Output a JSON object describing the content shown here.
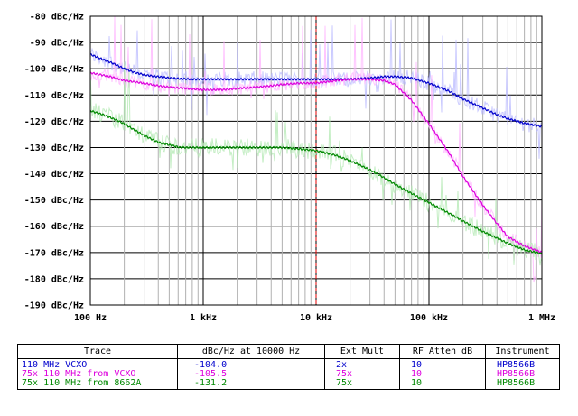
{
  "chart_data": {
    "type": "line",
    "x_scale": "log",
    "y_range": [
      -190,
      -80
    ],
    "x_range_hz": [
      100,
      1000000
    ],
    "grid": true,
    "marker": {
      "x_hz": 10000,
      "color": "#e00000",
      "style": "dashed"
    },
    "y_tick_labels": [
      "-80 dBc/Hz",
      "-90 dBc/Hz",
      "-100 dBc/Hz",
      "-110 dBc/Hz",
      "-120 dBc/Hz",
      "-130 dBc/Hz",
      "-140 dBc/Hz",
      "-150 dBc/Hz",
      "-160 dBc/Hz",
      "-170 dBc/Hz",
      "-180 dBc/Hz",
      "-190 dBc/Hz"
    ],
    "y_tick_values": [
      -80,
      -90,
      -100,
      -110,
      -120,
      -130,
      -140,
      -150,
      -160,
      -170,
      -180,
      -190
    ],
    "x_tick_labels": [
      "100 Hz",
      "1 kHz",
      "10 kHz",
      "100 kHz",
      "1 MHz"
    ],
    "x_tick_values": [
      100,
      1000,
      10000,
      100000,
      1000000
    ],
    "series": [
      {
        "name": "110 MHz VCXO",
        "color": "#0000cc",
        "x": [
          100,
          130,
          160,
          200,
          250,
          320,
          400,
          500,
          630,
          800,
          1000,
          1500,
          2000,
          3000,
          4000,
          5000,
          7000,
          10000,
          14000,
          20000,
          30000,
          40000,
          50000,
          70000,
          100000,
          150000,
          200000,
          300000,
          400000,
          500000,
          700000,
          1000000
        ],
        "y": [
          -94.5,
          -96.5,
          -98,
          -100,
          -101.5,
          -102.5,
          -103,
          -103.5,
          -103.8,
          -104,
          -104,
          -104,
          -104,
          -104,
          -104,
          -104,
          -104,
          -104,
          -104,
          -104,
          -103.5,
          -103,
          -103,
          -103.5,
          -105.5,
          -108.5,
          -111.5,
          -115,
          -117.5,
          -119,
          -120.8,
          -122
        ]
      },
      {
        "name": "75x 110 MHz from VCXO",
        "color": "#dd00dd",
        "x": [
          100,
          150,
          200,
          300,
          400,
          500,
          700,
          1000,
          1500,
          2000,
          3000,
          4000,
          5000,
          7000,
          10000,
          15000,
          20000,
          30000,
          40000,
          50000,
          70000,
          100000,
          150000,
          200000,
          300000,
          400000,
          500000,
          700000,
          1000000
        ],
        "y": [
          -101.5,
          -103,
          -104.5,
          -105.5,
          -106.5,
          -107,
          -107.5,
          -108,
          -108,
          -107.5,
          -107,
          -106.5,
          -106,
          -105.5,
          -105.5,
          -104.5,
          -104,
          -104,
          -104.5,
          -106,
          -112,
          -121,
          -132,
          -141,
          -152,
          -159,
          -164,
          -167.5,
          -170
        ]
      },
      {
        "name": "75x 110 MHz from 8662A",
        "color": "#008800",
        "x": [
          100,
          130,
          170,
          200,
          250,
          320,
          400,
          500,
          630,
          800,
          1000,
          1500,
          2000,
          3000,
          4000,
          5000,
          7000,
          10000,
          15000,
          20000,
          30000,
          40000,
          50000,
          70000,
          100000,
          150000,
          200000,
          300000,
          400000,
          500000,
          700000,
          1000000
        ],
        "y": [
          -116,
          -117.5,
          -119.5,
          -121,
          -123.5,
          -126,
          -128,
          -129,
          -130,
          -130,
          -130,
          -130,
          -130,
          -130,
          -130,
          -130,
          -130.5,
          -131.2,
          -133,
          -135,
          -138.5,
          -141.5,
          -144,
          -147.5,
          -151,
          -155,
          -158,
          -162,
          -164.5,
          -166.5,
          -169,
          -170.5
        ]
      }
    ]
  },
  "legend": {
    "headers": [
      "Trace",
      "dBc/Hz at 10000 Hz",
      "Ext Mult",
      "RF Atten dB",
      "Instrument"
    ],
    "rows": [
      {
        "trace": "110 MHz VCXO",
        "value": "-104.0",
        "mult": "2x",
        "atten": "10",
        "instrument": "HP8566B",
        "color": "#0000cc"
      },
      {
        "trace": "75x 110 MHz from VCXO",
        "value": "-105.5",
        "mult": "75x",
        "atten": "10",
        "instrument": "HP8566B",
        "color": "#dd00dd"
      },
      {
        "trace": "75x 110 MHz from 8662A",
        "value": "-131.2",
        "mult": "75x",
        "atten": "10",
        "instrument": "HP8566B",
        "color": "#008800"
      }
    ]
  }
}
